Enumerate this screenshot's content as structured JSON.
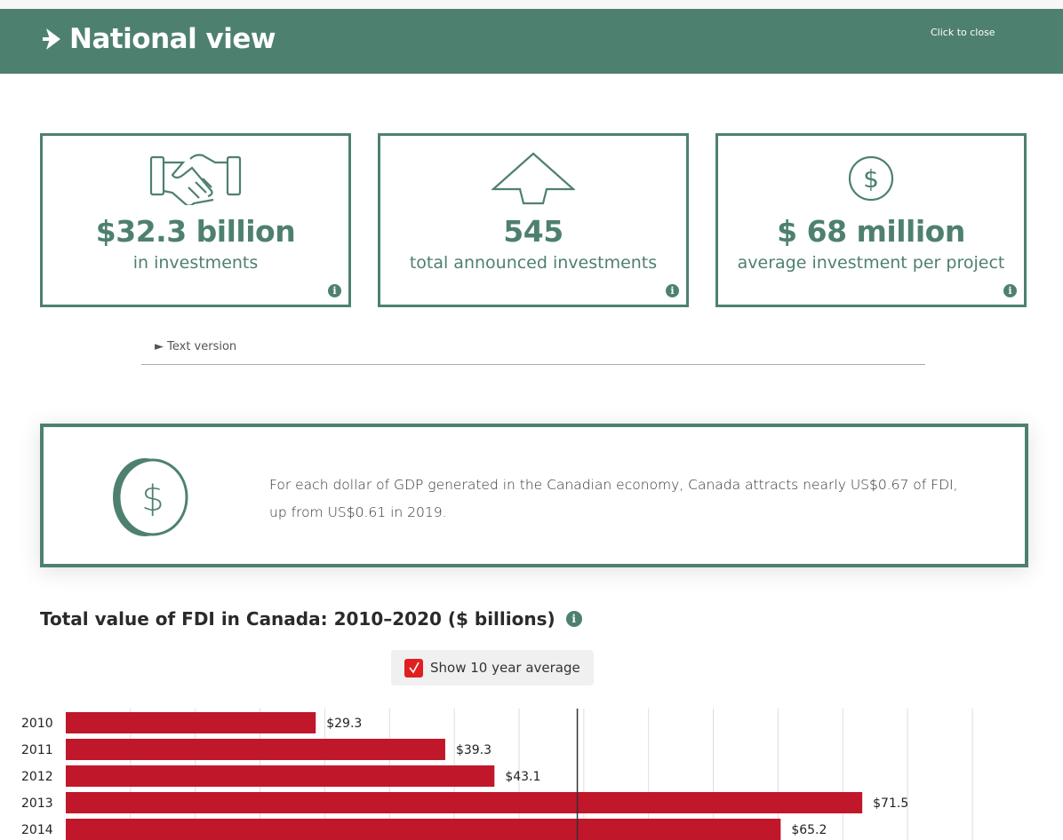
{
  "header": {
    "title": "National view",
    "close_label": "Click to close",
    "icon": "arrow-right-icon"
  },
  "cards": [
    {
      "icon": "handshake-icon",
      "value": "$32.3 billion",
      "label": "in investments"
    },
    {
      "icon": "arrow-up-icon",
      "value": "545",
      "label": "total announced investments"
    },
    {
      "icon": "dollar-circle-icon",
      "value": "$ 68 million",
      "label": "average investment per project"
    }
  ],
  "text_version_label": "► Text version",
  "callout": {
    "icon": "dollar-coin-icon",
    "text": "For each dollar of GDP generated in the Canadian economy, Canada attracts nearly US$0.67 of FDI, up from US$0.61 in 2019."
  },
  "chart_section": {
    "title": "Total value of FDI in Canada: 2010–2020 ($ billions)",
    "toggle_label": "Show 10 year average",
    "toggle_checked": true
  },
  "colors": {
    "brand": "#4e8070",
    "bar": "#c0172a",
    "checkbox": "#e02020"
  },
  "chart_data": {
    "type": "bar",
    "orientation": "horizontal",
    "title": "Total value of FDI in Canada: 2010–2020 ($ billions)",
    "categories": [
      "2010",
      "2011",
      "2012",
      "2013",
      "2014"
    ],
    "values": [
      29.3,
      39.3,
      43.1,
      71.5,
      65.2
    ],
    "data_labels": [
      "$29.3",
      "$39.3",
      "$43.1",
      "$71.5",
      "$65.2"
    ],
    "xlim": [
      10,
      80
    ],
    "grid_step": 5,
    "grid": true,
    "average_line": 49.5
  }
}
